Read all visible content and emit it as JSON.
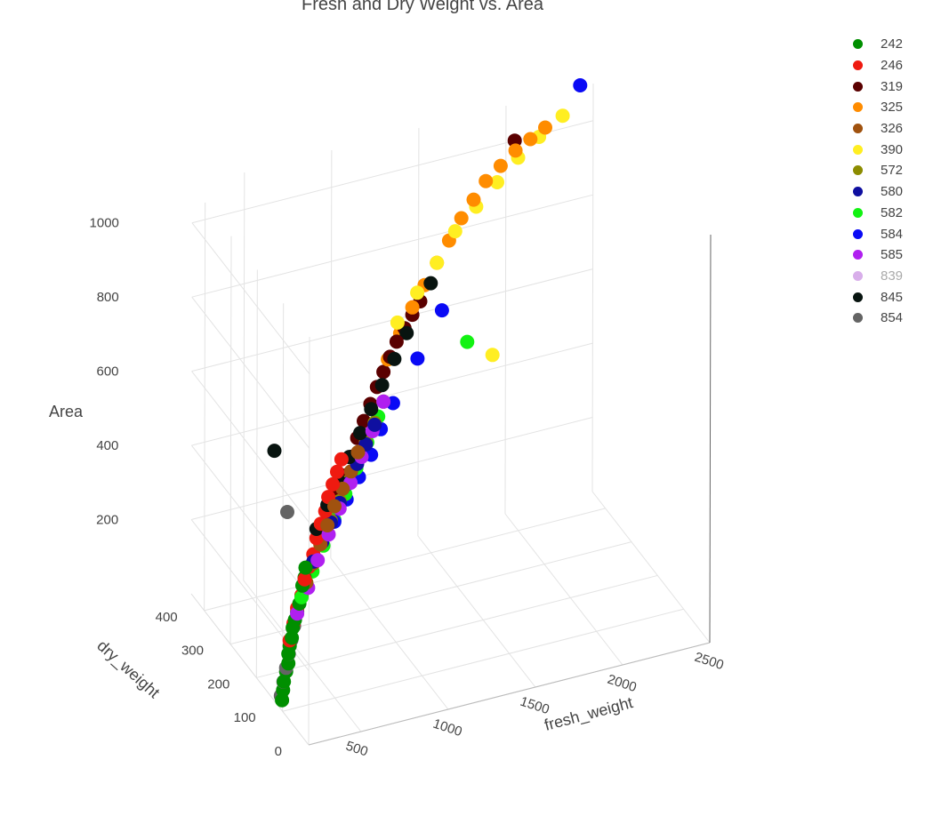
{
  "chart_data": {
    "type": "scatter",
    "title": "Fresh and Dry Weight vs. Area",
    "axes": {
      "x": {
        "label": "fresh_weight",
        "ticks": [
          "500",
          "1000",
          "1500",
          "2000",
          "2500"
        ]
      },
      "y": {
        "label": "dry_weight",
        "ticks": [
          "0",
          "100",
          "200",
          "300",
          "400"
        ]
      },
      "z": {
        "label": "Area",
        "ticks": [
          "200",
          "400",
          "600",
          "800",
          "1000"
        ]
      }
    },
    "legend_position": "top-right",
    "grid": true,
    "series": [
      {
        "name": "242",
        "color": "#008f00",
        "visible": true,
        "points": [
          [
            80,
            22,
            115
          ],
          [
            95,
            28,
            135
          ],
          [
            110,
            35,
            150
          ],
          [
            130,
            40,
            170
          ],
          [
            150,
            45,
            185
          ],
          [
            165,
            55,
            200
          ],
          [
            180,
            60,
            215
          ],
          [
            200,
            65,
            230
          ],
          [
            220,
            75,
            245
          ],
          [
            240,
            80,
            260
          ],
          [
            260,
            85,
            275
          ],
          [
            280,
            90,
            290
          ],
          [
            300,
            95,
            305
          ],
          [
            320,
            105,
            320
          ],
          [
            340,
            110,
            335
          ],
          [
            360,
            120,
            350
          ]
        ]
      },
      {
        "name": "246",
        "color": "#ef1a10",
        "visible": true,
        "points": [
          [
            180,
            60,
            230
          ],
          [
            220,
            72,
            260
          ],
          [
            260,
            85,
            285
          ],
          [
            300,
            95,
            305
          ],
          [
            340,
            110,
            330
          ],
          [
            380,
            120,
            350
          ],
          [
            420,
            130,
            370
          ],
          [
            460,
            145,
            395
          ],
          [
            500,
            155,
            420
          ],
          [
            540,
            165,
            440
          ],
          [
            580,
            180,
            460
          ],
          [
            620,
            190,
            480
          ],
          [
            660,
            200,
            500
          ],
          [
            700,
            210,
            520
          ]
        ]
      },
      {
        "name": "319",
        "color": "#5a0000",
        "visible": true,
        "points": [
          [
            640,
            180,
            460
          ],
          [
            700,
            195,
            490
          ],
          [
            760,
            210,
            520
          ],
          [
            820,
            230,
            545
          ],
          [
            880,
            245,
            570
          ],
          [
            940,
            260,
            595
          ],
          [
            1000,
            275,
            620
          ],
          [
            1060,
            290,
            640
          ],
          [
            1120,
            305,
            660
          ],
          [
            1180,
            320,
            680
          ],
          [
            1240,
            330,
            700
          ],
          [
            1300,
            340,
            720
          ],
          [
            1360,
            350,
            740
          ],
          [
            2050,
            450,
            1000
          ]
        ]
      },
      {
        "name": "325",
        "color": "#ff8c00",
        "visible": true,
        "points": [
          [
            1100,
            300,
            660
          ],
          [
            1200,
            320,
            700
          ],
          [
            1300,
            340,
            740
          ],
          [
            1400,
            360,
            770
          ],
          [
            1500,
            380,
            800
          ],
          [
            1600,
            400,
            830
          ],
          [
            1700,
            420,
            860
          ],
          [
            1800,
            440,
            880
          ],
          [
            1900,
            460,
            900
          ],
          [
            2000,
            470,
            920
          ],
          [
            2100,
            480,
            940
          ],
          [
            2200,
            490,
            950
          ],
          [
            2300,
            500,
            960
          ]
        ]
      },
      {
        "name": "326",
        "color": "#a0520f",
        "visible": true,
        "points": [
          [
            350,
            110,
            320
          ],
          [
            420,
            130,
            345
          ],
          [
            490,
            150,
            370
          ],
          [
            560,
            170,
            395
          ],
          [
            630,
            190,
            420
          ],
          [
            700,
            205,
            445
          ],
          [
            770,
            220,
            470
          ],
          [
            840,
            240,
            495
          ]
        ]
      },
      {
        "name": "390",
        "color": "#ffee22",
        "visible": true,
        "points": [
          [
            1200,
            330,
            720
          ],
          [
            1350,
            355,
            760
          ],
          [
            1500,
            380,
            800
          ],
          [
            1650,
            410,
            840
          ],
          [
            1800,
            430,
            870
          ],
          [
            1950,
            450,
            900
          ],
          [
            2100,
            470,
            930
          ],
          [
            2250,
            490,
            950
          ],
          [
            2400,
            500,
            980
          ],
          [
            1700,
            300,
            600
          ]
        ]
      },
      {
        "name": "572",
        "color": "#8c8c00",
        "visible": true,
        "points": [
          [
            500,
            150,
            380
          ],
          [
            580,
            170,
            405
          ],
          [
            660,
            190,
            430
          ],
          [
            740,
            210,
            455
          ],
          [
            820,
            230,
            480
          ],
          [
            900,
            250,
            505
          ],
          [
            980,
            270,
            530
          ],
          [
            1060,
            290,
            560
          ]
        ]
      },
      {
        "name": "580",
        "color": "#0f0fa0",
        "visible": true,
        "points": [
          [
            420,
            130,
            350
          ],
          [
            500,
            150,
            375
          ],
          [
            580,
            170,
            400
          ],
          [
            660,
            190,
            425
          ],
          [
            740,
            210,
            450
          ],
          [
            820,
            230,
            475
          ],
          [
            900,
            250,
            500
          ],
          [
            980,
            270,
            525
          ]
        ]
      },
      {
        "name": "582",
        "color": "#12f212",
        "visible": true,
        "points": [
          [
            300,
            95,
            300
          ],
          [
            400,
            120,
            335
          ],
          [
            500,
            145,
            370
          ],
          [
            600,
            170,
            405
          ],
          [
            700,
            195,
            440
          ],
          [
            800,
            220,
            475
          ],
          [
            900,
            245,
            510
          ],
          [
            1000,
            270,
            545
          ],
          [
            1600,
            330,
            620
          ]
        ]
      },
      {
        "name": "584",
        "color": "#0a0af5",
        "visible": true,
        "points": [
          [
            600,
            170,
            400
          ],
          [
            700,
            190,
            430
          ],
          [
            800,
            210,
            460
          ],
          [
            900,
            230,
            490
          ],
          [
            1000,
            260,
            520
          ],
          [
            1100,
            280,
            560
          ],
          [
            1300,
            320,
            620
          ],
          [
            1500,
            360,
            690
          ],
          [
            2500,
            500,
            1050
          ]
        ]
      },
      {
        "name": "585",
        "color": "#b020f0",
        "visible": true,
        "points": [
          [
            260,
            85,
            270
          ],
          [
            360,
            110,
            305
          ],
          [
            460,
            140,
            340
          ],
          [
            560,
            165,
            375
          ],
          [
            660,
            190,
            410
          ],
          [
            760,
            215,
            445
          ],
          [
            860,
            240,
            480
          ],
          [
            960,
            265,
            515
          ],
          [
            1060,
            290,
            560
          ]
        ]
      },
      {
        "name": "839",
        "color": "#b86bd8",
        "visible": false,
        "points": []
      },
      {
        "name": "845",
        "color": "#081410",
        "visible": true,
        "points": [
          [
            300,
            200,
            600
          ],
          [
            460,
            145,
            420
          ],
          [
            560,
            170,
            450
          ],
          [
            660,
            195,
            480
          ],
          [
            760,
            220,
            510
          ],
          [
            860,
            245,
            540
          ],
          [
            960,
            270,
            570
          ],
          [
            1060,
            295,
            600
          ],
          [
            1160,
            315,
            640
          ],
          [
            1260,
            335,
            680
          ],
          [
            1450,
            370,
            760
          ]
        ]
      },
      {
        "name": "854",
        "color": "#646464",
        "visible": true,
        "points": [
          [
            70,
            20,
            130
          ],
          [
            100,
            30,
            155
          ],
          [
            130,
            40,
            180
          ],
          [
            160,
            50,
            205
          ],
          [
            190,
            60,
            230
          ],
          [
            220,
            70,
            255
          ],
          [
            300,
            150,
            480
          ]
        ]
      }
    ]
  }
}
